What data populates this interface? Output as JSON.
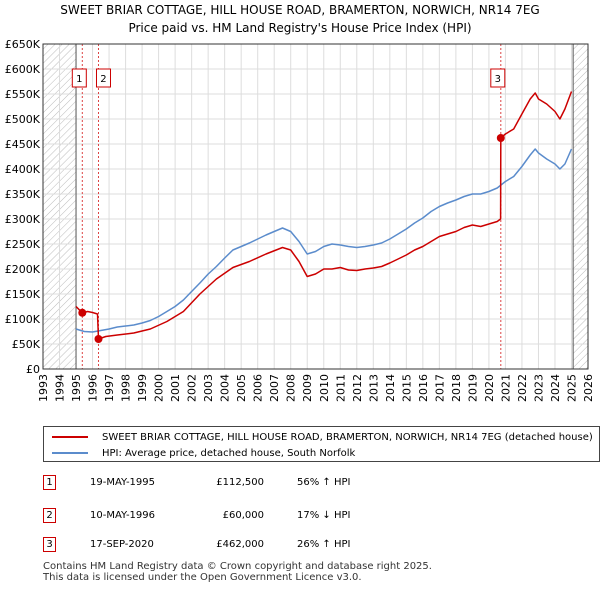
{
  "chart_data": {
    "type": "line",
    "title": "SWEET BRIAR COTTAGE, HILL HOUSE ROAD, BRAMERTON, NORWICH, NR14 7EG",
    "subtitle": "Price paid vs. HM Land Registry's House Price Index (HPI)",
    "xlim": [
      1993,
      2026
    ],
    "ylim": [
      0,
      650000
    ],
    "x_ticks": [
      "1993",
      "1994",
      "1995",
      "1996",
      "1997",
      "1998",
      "1999",
      "2000",
      "2001",
      "2002",
      "2003",
      "2004",
      "2005",
      "2006",
      "2007",
      "2008",
      "2009",
      "2010",
      "2011",
      "2012",
      "2013",
      "2014",
      "2015",
      "2016",
      "2017",
      "2018",
      "2019",
      "2020",
      "2021",
      "2022",
      "2023",
      "2024",
      "2025",
      "2026"
    ],
    "y_ticks": [
      {
        "value": 0,
        "label": "£0"
      },
      {
        "value": 50000,
        "label": "£50K"
      },
      {
        "value": 100000,
        "label": "£100K"
      },
      {
        "value": 150000,
        "label": "£150K"
      },
      {
        "value": 200000,
        "label": "£200K"
      },
      {
        "value": 250000,
        "label": "£250K"
      },
      {
        "value": 300000,
        "label": "£300K"
      },
      {
        "value": 350000,
        "label": "£350K"
      },
      {
        "value": 400000,
        "label": "£400K"
      },
      {
        "value": 450000,
        "label": "£450K"
      },
      {
        "value": 500000,
        "label": "£500K"
      },
      {
        "value": 550000,
        "label": "£550K"
      },
      {
        "value": 600000,
        "label": "£600K"
      },
      {
        "value": 650000,
        "label": "£650K"
      }
    ],
    "series": [
      {
        "name": "SWEET BRIAR COTTAGE, HILL HOUSE ROAD, BRAMERTON, NORWICH, NR14 7EG (detached house)",
        "color": "#cc0000",
        "points": [
          [
            1995.0,
            125000
          ],
          [
            1995.38,
            112500
          ],
          [
            1995.7,
            115000
          ],
          [
            1996.0,
            113000
          ],
          [
            1996.3,
            110000
          ],
          [
            1996.36,
            60000
          ],
          [
            1996.8,
            65000
          ],
          [
            1997.5,
            68000
          ],
          [
            1998.5,
            72000
          ],
          [
            1999.5,
            80000
          ],
          [
            2000.5,
            95000
          ],
          [
            2001.5,
            115000
          ],
          [
            2002.5,
            150000
          ],
          [
            2003.5,
            180000
          ],
          [
            2004.5,
            203000
          ],
          [
            2005.5,
            215000
          ],
          [
            2006.5,
            230000
          ],
          [
            2007.5,
            243000
          ],
          [
            2008.0,
            238000
          ],
          [
            2008.5,
            215000
          ],
          [
            2009.0,
            185000
          ],
          [
            2009.5,
            190000
          ],
          [
            2010.0,
            200000
          ],
          [
            2010.5,
            200000
          ],
          [
            2011.0,
            203000
          ],
          [
            2011.5,
            198000
          ],
          [
            2012.0,
            197000
          ],
          [
            2012.5,
            200000
          ],
          [
            2013.0,
            202000
          ],
          [
            2013.5,
            205000
          ],
          [
            2014.0,
            212000
          ],
          [
            2014.5,
            220000
          ],
          [
            2015.0,
            228000
          ],
          [
            2015.5,
            238000
          ],
          [
            2016.0,
            245000
          ],
          [
            2016.5,
            255000
          ],
          [
            2017.0,
            265000
          ],
          [
            2017.5,
            270000
          ],
          [
            2018.0,
            275000
          ],
          [
            2018.5,
            283000
          ],
          [
            2019.0,
            288000
          ],
          [
            2019.5,
            285000
          ],
          [
            2020.0,
            290000
          ],
          [
            2020.5,
            295000
          ],
          [
            2020.71,
            300000
          ],
          [
            2020.72,
            462000
          ],
          [
            2021.0,
            470000
          ],
          [
            2021.5,
            480000
          ],
          [
            2022.0,
            510000
          ],
          [
            2022.5,
            540000
          ],
          [
            2022.8,
            552000
          ],
          [
            2023.0,
            540000
          ],
          [
            2023.5,
            530000
          ],
          [
            2024.0,
            515000
          ],
          [
            2024.3,
            500000
          ],
          [
            2024.6,
            520000
          ],
          [
            2025.0,
            555000
          ]
        ]
      },
      {
        "name": "HPI: Average price, detached house, South Norfolk",
        "color": "#5b8ccc",
        "points": [
          [
            1995.0,
            80000
          ],
          [
            1995.5,
            75000
          ],
          [
            1996.0,
            74000
          ],
          [
            1996.5,
            77000
          ],
          [
            1997.0,
            80000
          ],
          [
            1997.5,
            84000
          ],
          [
            1998.0,
            86000
          ],
          [
            1998.5,
            88000
          ],
          [
            1999.0,
            92000
          ],
          [
            1999.5,
            97000
          ],
          [
            2000.0,
            105000
          ],
          [
            2000.5,
            115000
          ],
          [
            2001.0,
            125000
          ],
          [
            2001.5,
            138000
          ],
          [
            2002.0,
            155000
          ],
          [
            2002.5,
            172000
          ],
          [
            2003.0,
            190000
          ],
          [
            2003.5,
            205000
          ],
          [
            2004.0,
            222000
          ],
          [
            2004.5,
            238000
          ],
          [
            2005.0,
            245000
          ],
          [
            2005.5,
            252000
          ],
          [
            2006.0,
            260000
          ],
          [
            2006.5,
            268000
          ],
          [
            2007.0,
            275000
          ],
          [
            2007.5,
            282000
          ],
          [
            2008.0,
            275000
          ],
          [
            2008.5,
            255000
          ],
          [
            2009.0,
            230000
          ],
          [
            2009.5,
            235000
          ],
          [
            2010.0,
            245000
          ],
          [
            2010.5,
            250000
          ],
          [
            2011.0,
            248000
          ],
          [
            2011.5,
            245000
          ],
          [
            2012.0,
            243000
          ],
          [
            2012.5,
            245000
          ],
          [
            2013.0,
            248000
          ],
          [
            2013.5,
            252000
          ],
          [
            2014.0,
            260000
          ],
          [
            2014.5,
            270000
          ],
          [
            2015.0,
            280000
          ],
          [
            2015.5,
            292000
          ],
          [
            2016.0,
            302000
          ],
          [
            2016.5,
            315000
          ],
          [
            2017.0,
            325000
          ],
          [
            2017.5,
            332000
          ],
          [
            2018.0,
            338000
          ],
          [
            2018.5,
            345000
          ],
          [
            2019.0,
            350000
          ],
          [
            2019.5,
            350000
          ],
          [
            2020.0,
            355000
          ],
          [
            2020.5,
            362000
          ],
          [
            2021.0,
            375000
          ],
          [
            2021.5,
            385000
          ],
          [
            2022.0,
            405000
          ],
          [
            2022.5,
            428000
          ],
          [
            2022.8,
            440000
          ],
          [
            2023.0,
            432000
          ],
          [
            2023.5,
            420000
          ],
          [
            2024.0,
            410000
          ],
          [
            2024.3,
            400000
          ],
          [
            2024.6,
            410000
          ],
          [
            2025.0,
            440000
          ]
        ]
      }
    ],
    "sales": [
      {
        "num": "1",
        "x": 1995.38,
        "y": 112500
      },
      {
        "num": "2",
        "x": 1996.36,
        "y": 60000
      },
      {
        "num": "3",
        "x": 2020.72,
        "y": 462000
      }
    ]
  },
  "legend": {
    "property_label": "SWEET BRIAR COTTAGE, HILL HOUSE ROAD, BRAMERTON, NORWICH, NR14 7EG (detached house)",
    "hpi_label": "HPI: Average price, detached house, South Norfolk"
  },
  "transactions": [
    {
      "num": "1",
      "date": "19-MAY-1995",
      "price": "£112,500",
      "hpi": "56% ↑ HPI"
    },
    {
      "num": "2",
      "date": "10-MAY-1996",
      "price": "£60,000",
      "hpi": "17% ↓ HPI"
    },
    {
      "num": "3",
      "date": "17-SEP-2020",
      "price": "£462,000",
      "hpi": "26% ↑ HPI"
    }
  ],
  "footer": {
    "line1": "Contains HM Land Registry data © Crown copyright and database right 2025.",
    "line2": "This data is licensed under the Open Government Licence v3.0."
  }
}
